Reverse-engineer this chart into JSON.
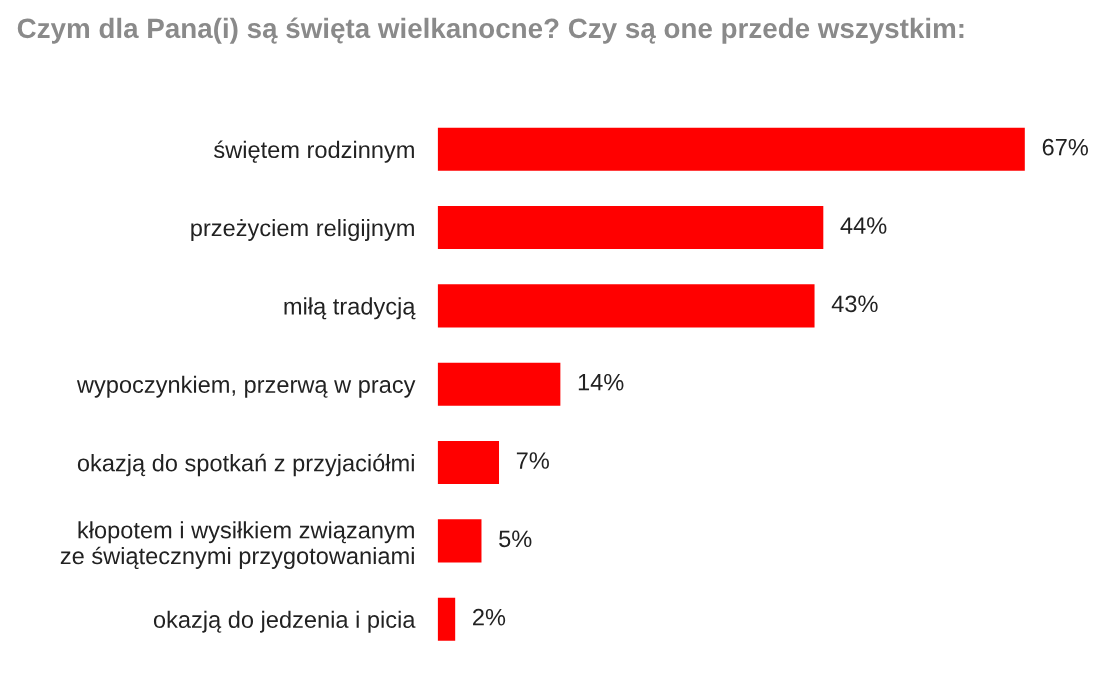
{
  "chart_data": {
    "type": "bar",
    "orientation": "horizontal",
    "title": "Czym dla Pana(i) są święta wielkanocne? Czy są one przede wszystkim:",
    "categories": [
      "świętem rodzinnym",
      "przeżyciem religijnym",
      "miłą tradycją",
      "wypoczynkiem, przerwą w pracy",
      "okazją do spotkań z przyjaciółmi",
      "kłopotem i wysiłkiem związanym\nze świątecznymi przygotowaniami",
      "okazją do jedzenia i picia"
    ],
    "values": [
      67,
      44,
      43,
      14,
      7,
      5,
      2
    ],
    "value_labels": [
      "67%",
      "44%",
      "43%",
      "14%",
      "7%",
      "5%",
      "2%"
    ],
    "color": "#ff0000",
    "grid": false,
    "legend": false
  }
}
